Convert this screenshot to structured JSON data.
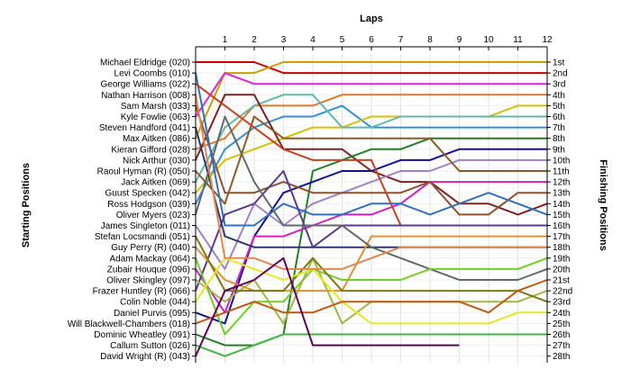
{
  "chart_data": {
    "type": "line",
    "title": "",
    "xlabel": "Laps",
    "ylabel_left": "Starting Positions",
    "ylabel_right": "Finishing Positions",
    "x": [
      0,
      1,
      2,
      3,
      4,
      5,
      6,
      7,
      8,
      9,
      10,
      11,
      12
    ],
    "x_tick_labels": [
      "1",
      "2",
      "3",
      "4",
      "5",
      "6",
      "7",
      "8",
      "9",
      "10",
      "11",
      "12"
    ],
    "y_range": [
      1,
      28
    ],
    "grid": true,
    "drivers": [
      "Michael Eldridge (020)",
      "Levi Coombs (010)",
      "George Williams (022)",
      "Nathan Harrison (008)",
      "Sam Marsh (033)",
      "Kyle Fowlie (063)",
      "Steven Handford (041)",
      "Max Aitken (086)",
      "Kieran Gifford (028)",
      "Nick Arthur (030)",
      "Raoul Hyman  (R) (050)",
      "Jack Aitken (069)",
      "Guust Specken (042)",
      "Ross Hodgson (039)",
      "Oliver Myers (023)",
      "James Singleton (011)",
      "Stefan Locsmandi (051)",
      "Guy Perry (R) (040)",
      "Adam Mackay (064)",
      "Zubair Houque (096)",
      "Oliver Skingley (097)",
      "Frazer Huntley (R) (066)",
      "Colin Noble (044)",
      "Daniel Purvis (095)",
      "Will Blackwell-Chambers (018)",
      "Dominic Wheatley (091)",
      "Callum Sutton (026)",
      "David Wright (R) (043)"
    ],
    "finishing_labels": [
      "1st",
      "2nd",
      "3rd",
      "4th",
      "5th",
      "6th",
      "7th",
      "8th",
      "9th",
      "10th",
      "11th",
      "12th",
      "13th",
      "14th",
      "15th",
      "16th",
      "17th",
      "18th",
      "19th",
      "20th",
      "21st",
      "22nd",
      "23rd",
      "24th",
      "25th",
      "26th",
      "27th",
      "28th"
    ],
    "series": [
      {
        "color": "#cc0000",
        "values": [
          1,
          1,
          1,
          2,
          2,
          2,
          2,
          2,
          2,
          2,
          2,
          2,
          2
        ]
      },
      {
        "color": "#c8a000",
        "values": [
          8,
          2,
          2,
          1,
          1,
          1,
          1,
          1,
          1,
          1,
          1,
          1,
          1
        ]
      },
      {
        "color": "#e020e0",
        "values": [
          6,
          2,
          3,
          3,
          3,
          3,
          3,
          3,
          3,
          3,
          3,
          3,
          3
        ]
      },
      {
        "color": "#e07828",
        "values": [
          9,
          8,
          5,
          5,
          5,
          4,
          4,
          4,
          4,
          4,
          4,
          4,
          4
        ]
      },
      {
        "color": "#3090e0",
        "values": [
          14,
          9,
          7,
          6,
          6,
          5,
          7,
          7,
          7,
          7,
          7,
          7,
          7
        ]
      },
      {
        "color": "#d8c000",
        "values": [
          13,
          10,
          9,
          8,
          7,
          7,
          6,
          6,
          6,
          6,
          6,
          5,
          5
        ]
      },
      {
        "color": "#60b8b0",
        "values": [
          12,
          7,
          5,
          4,
          4,
          7,
          7,
          6,
          6,
          6,
          6,
          6,
          6
        ]
      },
      {
        "color": "#802020",
        "values": [
          10,
          4,
          4,
          9,
          9,
          9,
          11,
          12,
          12,
          14,
          14,
          15,
          14
        ]
      },
      {
        "color": "#208020",
        "values": [
          26,
          27,
          27,
          26,
          11,
          10,
          9,
          9,
          8,
          8,
          8,
          8,
          8
        ]
      },
      {
        "color": "#1010a0",
        "values": [
          24,
          25,
          17,
          13,
          12,
          11,
          11,
          10,
          10,
          9,
          9,
          9,
          9
        ]
      },
      {
        "color": "#a080c8",
        "values": [
          16,
          20,
          14,
          16,
          14,
          13,
          12,
          11,
          11,
          10,
          10,
          10,
          10
        ]
      },
      {
        "color": "#8c5a28",
        "values": [
          11,
          14,
          6,
          8,
          8,
          8,
          8,
          8,
          8,
          11,
          11,
          11,
          11
        ]
      },
      {
        "color": "#d020c0",
        "values": [
          20,
          24,
          17,
          17,
          16,
          15,
          15,
          14,
          12,
          12,
          12,
          12,
          12
        ]
      },
      {
        "color": "#905030",
        "values": [
          5,
          13,
          13,
          12,
          13,
          13,
          13,
          13,
          12,
          15,
          15,
          13,
          13
        ]
      },
      {
        "color": "#3070c0",
        "values": [
          2,
          16,
          16,
          14,
          15,
          15,
          14,
          14,
          15,
          14,
          13,
          14,
          15
        ]
      },
      {
        "color": "#c84020",
        "values": [
          3,
          5,
          7,
          9,
          10,
          10,
          10,
          16,
          16,
          16,
          16,
          16,
          16
        ]
      },
      {
        "color": "#5a3a90",
        "values": [
          22,
          15,
          14,
          11,
          18,
          16,
          16,
          16,
          16,
          16,
          16,
          16,
          16
        ]
      },
      {
        "color": "#2a3a70",
        "values": [
          7,
          17,
          18,
          18,
          18,
          18,
          18,
          18,
          18,
          18,
          18,
          18,
          18
        ]
      },
      {
        "color": "#e09030",
        "values": [
          18,
          21,
          22,
          22,
          22,
          22,
          17,
          17,
          17,
          17,
          17,
          17,
          17
        ]
      },
      {
        "color": "#606a6a",
        "values": [
          15,
          6,
          12,
          16,
          16,
          16,
          18,
          19,
          20,
          21,
          21,
          21,
          20
        ]
      },
      {
        "color": "#70d020",
        "values": [
          19,
          26,
          23,
          23,
          20,
          21,
          21,
          21,
          20,
          20,
          20,
          20,
          19
        ]
      },
      {
        "color": "#a0b840",
        "values": [
          21,
          23,
          21,
          25,
          19,
          25,
          23,
          23,
          23,
          23,
          23,
          23,
          22
        ]
      },
      {
        "color": "#7a7a10",
        "values": [
          17,
          22,
          22,
          22,
          19,
          22,
          22,
          22,
          22,
          22,
          22,
          22,
          23
        ]
      },
      {
        "color": "#e8e820",
        "values": [
          23,
          19,
          20,
          21,
          20,
          23,
          25,
          25,
          25,
          25,
          25,
          24,
          24
        ]
      },
      {
        "color": "#c05a10",
        "values": [
          25,
          24,
          23,
          24,
          24,
          23,
          23,
          23,
          23,
          23,
          24,
          22,
          21
        ]
      },
      {
        "color": "#e08850",
        "values": [
          4,
          19,
          19,
          20,
          20,
          20,
          19,
          18,
          18,
          18,
          18,
          18,
          18
        ]
      },
      {
        "color": "#40b840",
        "values": [
          27,
          28,
          27,
          26,
          26,
          26,
          26,
          26,
          26,
          26,
          26,
          26,
          26
        ]
      },
      {
        "color": "#600060",
        "values": [
          28,
          22,
          21,
          19,
          27,
          27,
          27,
          27,
          27,
          27,
          null,
          null,
          null
        ]
      }
    ]
  }
}
